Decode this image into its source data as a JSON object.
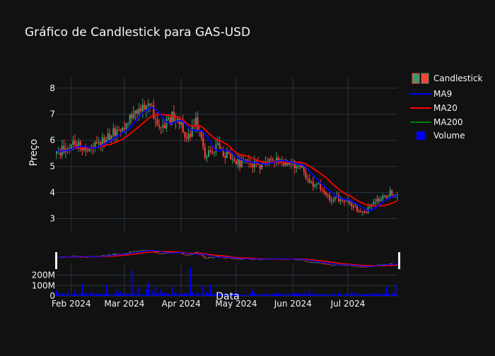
{
  "chart_data": {
    "type": "candlestick",
    "title": "Gráfico de Candlestick para GAS-USD",
    "ylabel": "Preço",
    "xlabel": "Data",
    "x_start": "2024-01-24",
    "x_end": "2024-07-28",
    "x_ticks": [
      {
        "date": "2024-02-01",
        "label": "Feb 2024"
      },
      {
        "date": "2024-03-01",
        "label": "Mar 2024"
      },
      {
        "date": "2024-04-01",
        "label": "Apr 2024"
      },
      {
        "date": "2024-05-01",
        "label": "May 2024"
      },
      {
        "date": "2024-06-01",
        "label": "Jun 2024"
      },
      {
        "date": "2024-07-01",
        "label": "Jul 2024"
      }
    ],
    "price_axis": {
      "ylim": [
        2.5,
        8.4
      ],
      "ticks": [
        "3",
        "4",
        "5",
        "6",
        "7",
        "8"
      ]
    },
    "volume_axis": {
      "ylim": [
        0,
        300000000
      ],
      "ticks": [
        {
          "value": 0,
          "label": "0"
        },
        {
          "value": 100000000,
          "label": "100M"
        },
        {
          "value": 200000000,
          "label": "200M"
        }
      ]
    },
    "price_anchors": [
      [
        "2024-01-24",
        5.5
      ],
      [
        "2024-01-28",
        5.7
      ],
      [
        "2024-02-01",
        5.8
      ],
      [
        "2024-02-05",
        5.75
      ],
      [
        "2024-02-09",
        5.7
      ],
      [
        "2024-02-13",
        5.8
      ],
      [
        "2024-02-17",
        6.0
      ],
      [
        "2024-02-20",
        6.15
      ],
      [
        "2024-02-24",
        6.3
      ],
      [
        "2024-02-28",
        6.4
      ],
      [
        "2024-03-03",
        6.7
      ],
      [
        "2024-03-06",
        7.2
      ],
      [
        "2024-03-10",
        7.1
      ],
      [
        "2024-03-13",
        7.45
      ],
      [
        "2024-03-15",
        7.2
      ],
      [
        "2024-03-18",
        6.9
      ],
      [
        "2024-03-20",
        6.3
      ],
      [
        "2024-03-23",
        6.5
      ],
      [
        "2024-03-27",
        6.95
      ],
      [
        "2024-03-31",
        6.8
      ],
      [
        "2024-04-02",
        6.2
      ],
      [
        "2024-04-06",
        6.3
      ],
      [
        "2024-04-09",
        6.8
      ],
      [
        "2024-04-12",
        6.2
      ],
      [
        "2024-04-14",
        5.3
      ],
      [
        "2024-04-17",
        5.5
      ],
      [
        "2024-04-21",
        5.8
      ],
      [
        "2024-04-25",
        5.5
      ],
      [
        "2024-04-29",
        5.2
      ],
      [
        "2024-05-03",
        5.1
      ],
      [
        "2024-05-08",
        5.1
      ],
      [
        "2024-05-12",
        5.05
      ],
      [
        "2024-05-16",
        5.0
      ],
      [
        "2024-05-20",
        5.2
      ],
      [
        "2024-05-24",
        5.15
      ],
      [
        "2024-05-28",
        5.1
      ],
      [
        "2024-06-01",
        5.05
      ],
      [
        "2024-06-05",
        4.95
      ],
      [
        "2024-06-08",
        4.7
      ],
      [
        "2024-06-11",
        4.3
      ],
      [
        "2024-06-15",
        4.25
      ],
      [
        "2024-06-18",
        3.9
      ],
      [
        "2024-06-21",
        3.75
      ],
      [
        "2024-06-24",
        3.9
      ],
      [
        "2024-06-28",
        3.7
      ],
      [
        "2024-07-01",
        3.6
      ],
      [
        "2024-07-04",
        3.5
      ],
      [
        "2024-07-07",
        3.2
      ],
      [
        "2024-07-10",
        3.25
      ],
      [
        "2024-07-13",
        3.4
      ],
      [
        "2024-07-16",
        3.7
      ],
      [
        "2024-07-20",
        3.85
      ],
      [
        "2024-07-24",
        3.95
      ],
      [
        "2024-07-28",
        3.8
      ]
    ],
    "volume_spikes": [
      [
        "2024-02-07",
        120000000
      ],
      [
        "2024-02-20",
        110000000
      ],
      [
        "2024-03-05",
        115000000
      ],
      [
        "2024-03-09",
        90000000
      ],
      [
        "2024-03-14",
        130000000
      ],
      [
        "2024-03-18",
        95000000
      ],
      [
        "2024-03-27",
        85000000
      ],
      [
        "2024-04-06",
        125000000
      ],
      [
        "2024-04-13",
        100000000
      ],
      [
        "2024-04-17",
        110000000
      ],
      [
        "2024-05-10",
        60000000
      ],
      [
        "2024-06-10",
        55000000
      ],
      [
        "2024-07-03",
        45000000
      ],
      [
        "2024-07-22",
        90000000
      ],
      [
        "2024-07-27",
        110000000
      ]
    ],
    "series": [
      {
        "name": "Candlestick",
        "color_up": "#3d9970",
        "color_down": "#ff4136"
      },
      {
        "name": "MA9",
        "color": "#0000ff"
      },
      {
        "name": "MA20",
        "color": "#ff0000"
      },
      {
        "name": "MA200",
        "color": "#008000"
      },
      {
        "name": "Volume",
        "color": "#0000ff"
      }
    ]
  }
}
